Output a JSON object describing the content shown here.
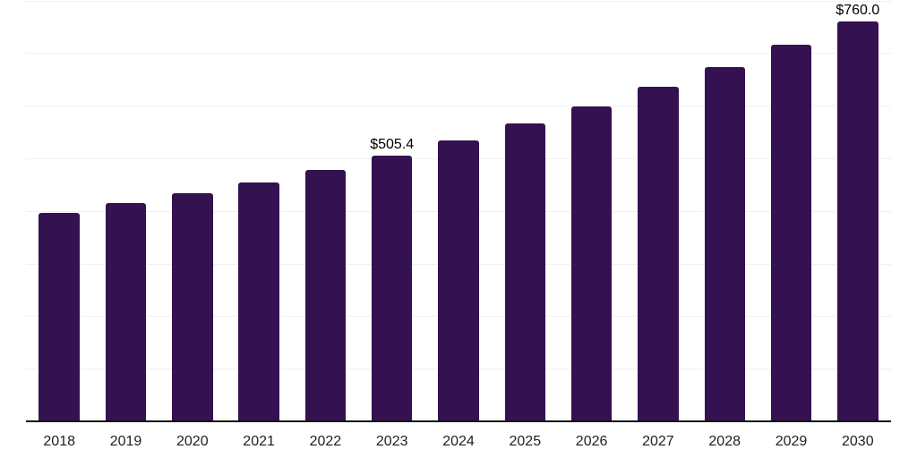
{
  "chart_data": {
    "type": "bar",
    "title": "",
    "xlabel": "",
    "ylabel": "",
    "currency_prefix": "$",
    "categories": [
      "2018",
      "2019",
      "2020",
      "2021",
      "2022",
      "2023",
      "2024",
      "2025",
      "2026",
      "2027",
      "2028",
      "2029",
      "2030"
    ],
    "values": [
      397.0,
      415.2,
      433.6,
      454.7,
      478.8,
      505.4,
      534.0,
      566.0,
      599.5,
      635.5,
      674.0,
      716.0,
      760.0
    ],
    "point_labels": {
      "2023": "$505.4",
      "2030": "$760.0"
    },
    "ylim": [
      0,
      801
    ],
    "gridline_step": 100,
    "grid": true,
    "legend_position": "none",
    "y_axis_ticks_visible": false,
    "colors": {
      "bar": "#341150",
      "gridline": "#F0F0F0",
      "axis_line": "#111111",
      "tick_label": "#1F1F1F",
      "value_label": "#000000",
      "background": "#FFFFFF"
    }
  }
}
